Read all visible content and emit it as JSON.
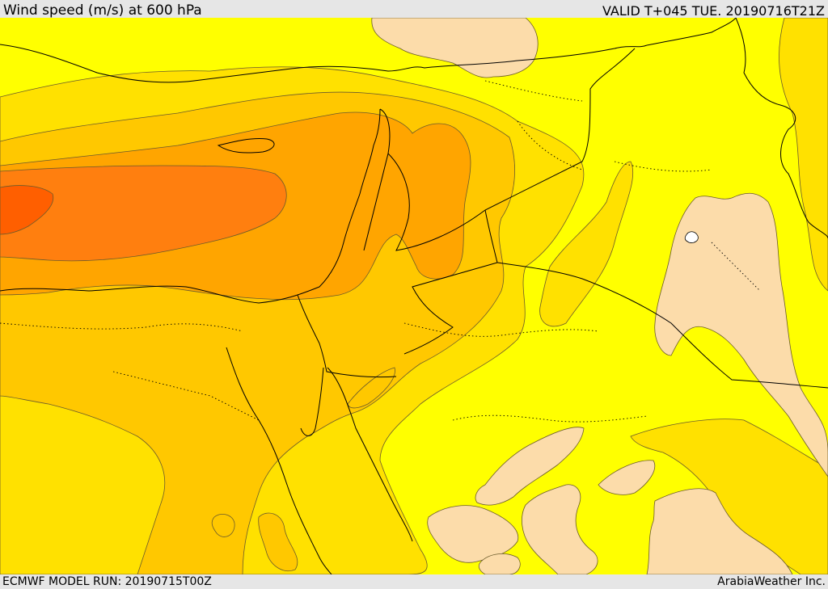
{
  "header": {
    "title": "Wind speed (m/s) at 600 hPa",
    "valid": "VALID T+045 TUE. 20190716T21Z"
  },
  "footer": {
    "model_run": "ECMWF MODEL RUN: 20190715T00Z",
    "credit": "ArabiaWeather Inc."
  },
  "colors": {
    "band_lowest": "#fcdcaa",
    "band_low": "#ffff00",
    "band_mid_low": "#ffe100",
    "band_mid": "#ffc800",
    "band_mid_high": "#ffa500",
    "band_high": "#ff7f0f",
    "band_max": "#ff5f00",
    "contour": "#6b5b2b",
    "border": "#000000",
    "white_patch": "#ffffff"
  }
}
